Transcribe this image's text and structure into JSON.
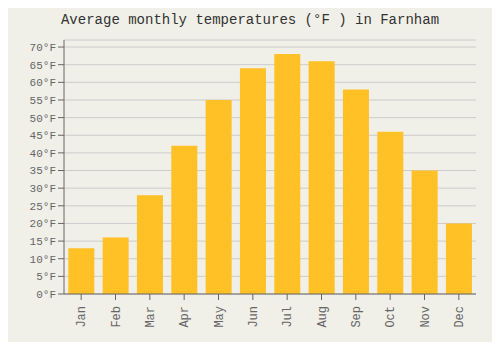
{
  "chart_data": {
    "type": "bar",
    "title": "Average monthly temperatures (°F ) in Farnham",
    "categories": [
      "Jan",
      "Feb",
      "Mar",
      "Apr",
      "May",
      "Jun",
      "Jul",
      "Aug",
      "Sep",
      "Oct",
      "Nov",
      "Dec"
    ],
    "values": [
      13,
      16,
      28,
      42,
      55,
      64,
      68,
      66,
      58,
      46,
      35,
      20
    ],
    "color": "#FFC125",
    "ylim": [
      0,
      72
    ],
    "yticks": [
      {
        "value": 0,
        "label": "0°F"
      },
      {
        "value": 5,
        "label": "5°F"
      },
      {
        "value": 10,
        "label": "10°F"
      },
      {
        "value": 15,
        "label": "15°F"
      },
      {
        "value": 20,
        "label": "20°F"
      },
      {
        "value": 25,
        "label": "25°F"
      },
      {
        "value": 30,
        "label": "30°F"
      },
      {
        "value": 35,
        "label": "35°F"
      },
      {
        "value": 40,
        "label": "40°F"
      },
      {
        "value": 45,
        "label": "45°F"
      },
      {
        "value": 50,
        "label": "50°F"
      },
      {
        "value": 55,
        "label": "55°F"
      },
      {
        "value": 60,
        "label": "60°F"
      },
      {
        "value": 65,
        "label": "65°F"
      },
      {
        "value": 70,
        "label": "70°F"
      }
    ],
    "grid": true
  }
}
